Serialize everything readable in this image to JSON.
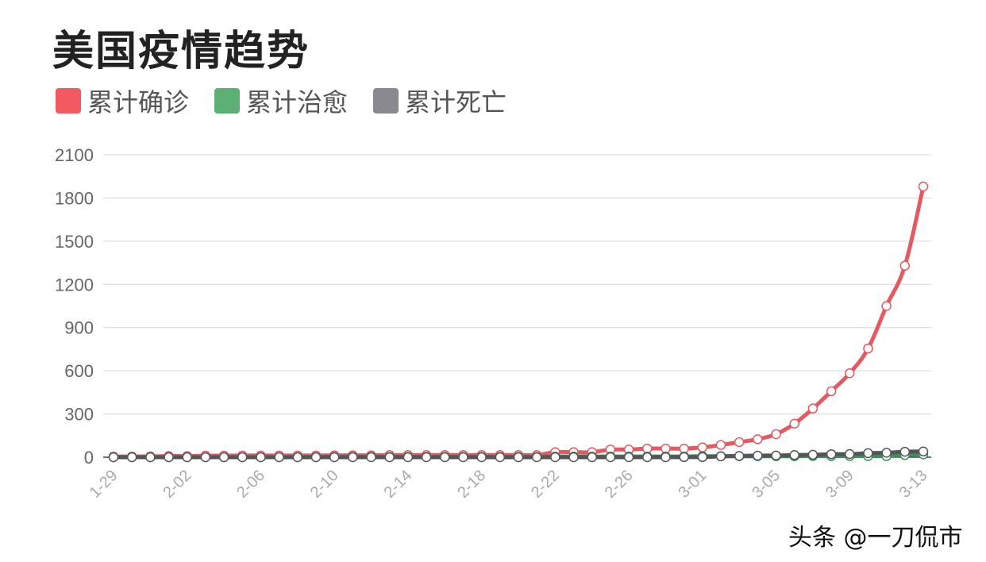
{
  "title": "美国疫情趋势",
  "watermark": "头条 @一刀侃市",
  "chart_data": {
    "type": "line",
    "title": "美国疫情趋势",
    "xlabel": "",
    "ylabel": "",
    "ylim": [
      0,
      2100
    ],
    "yticks": [
      0,
      300,
      600,
      900,
      1200,
      1500,
      1800,
      2100
    ],
    "grid": true,
    "legend_position": "top-left",
    "x": [
      "1-29",
      "1-30",
      "1-31",
      "2-01",
      "2-02",
      "2-03",
      "2-04",
      "2-05",
      "2-06",
      "2-07",
      "2-08",
      "2-09",
      "2-10",
      "2-11",
      "2-12",
      "2-13",
      "2-14",
      "2-15",
      "2-16",
      "2-17",
      "2-18",
      "2-19",
      "2-20",
      "2-21",
      "2-22",
      "2-23",
      "2-24",
      "2-25",
      "2-26",
      "2-27",
      "2-28",
      "2-29",
      "3-01",
      "3-02",
      "3-03",
      "3-04",
      "3-05",
      "3-06",
      "3-07",
      "3-08",
      "3-09",
      "3-10",
      "3-11",
      "3-12",
      "3-13"
    ],
    "xtick_labels": [
      "1-29",
      "2-02",
      "2-06",
      "2-10",
      "2-14",
      "2-18",
      "2-22",
      "2-26",
      "3-01",
      "3-05",
      "3-09",
      "3-13"
    ],
    "series": [
      {
        "name": "累计确诊",
        "color": "#e35a62",
        "values": [
          5,
          5,
          6,
          8,
          8,
          11,
          11,
          12,
          12,
          12,
          12,
          12,
          13,
          13,
          13,
          15,
          15,
          15,
          15,
          15,
          15,
          15,
          15,
          15,
          35,
          35,
          35,
          53,
          53,
          60,
          60,
          60,
          68,
          85,
          105,
          125,
          160,
          233,
          338,
          458,
          583,
          755,
          1050,
          1330,
          1880
        ]
      },
      {
        "name": "累计治愈",
        "color": "#5db075",
        "values": [
          0,
          0,
          0,
          0,
          0,
          0,
          0,
          0,
          0,
          0,
          1,
          1,
          3,
          3,
          3,
          3,
          3,
          3,
          3,
          3,
          3,
          3,
          3,
          3,
          5,
          5,
          5,
          5,
          5,
          5,
          5,
          5,
          7,
          7,
          7,
          7,
          7,
          7,
          8,
          8,
          8,
          8,
          8,
          15,
          20
        ]
      },
      {
        "name": "累计死亡",
        "color": "#8a898f",
        "values": [
          0,
          0,
          0,
          0,
          0,
          0,
          0,
          0,
          0,
          0,
          0,
          0,
          0,
          0,
          0,
          0,
          0,
          0,
          0,
          0,
          0,
          0,
          0,
          0,
          0,
          0,
          0,
          0,
          0,
          0,
          0,
          1,
          1,
          6,
          9,
          11,
          12,
          15,
          17,
          21,
          22,
          28,
          31,
          38,
          40
        ]
      }
    ]
  }
}
